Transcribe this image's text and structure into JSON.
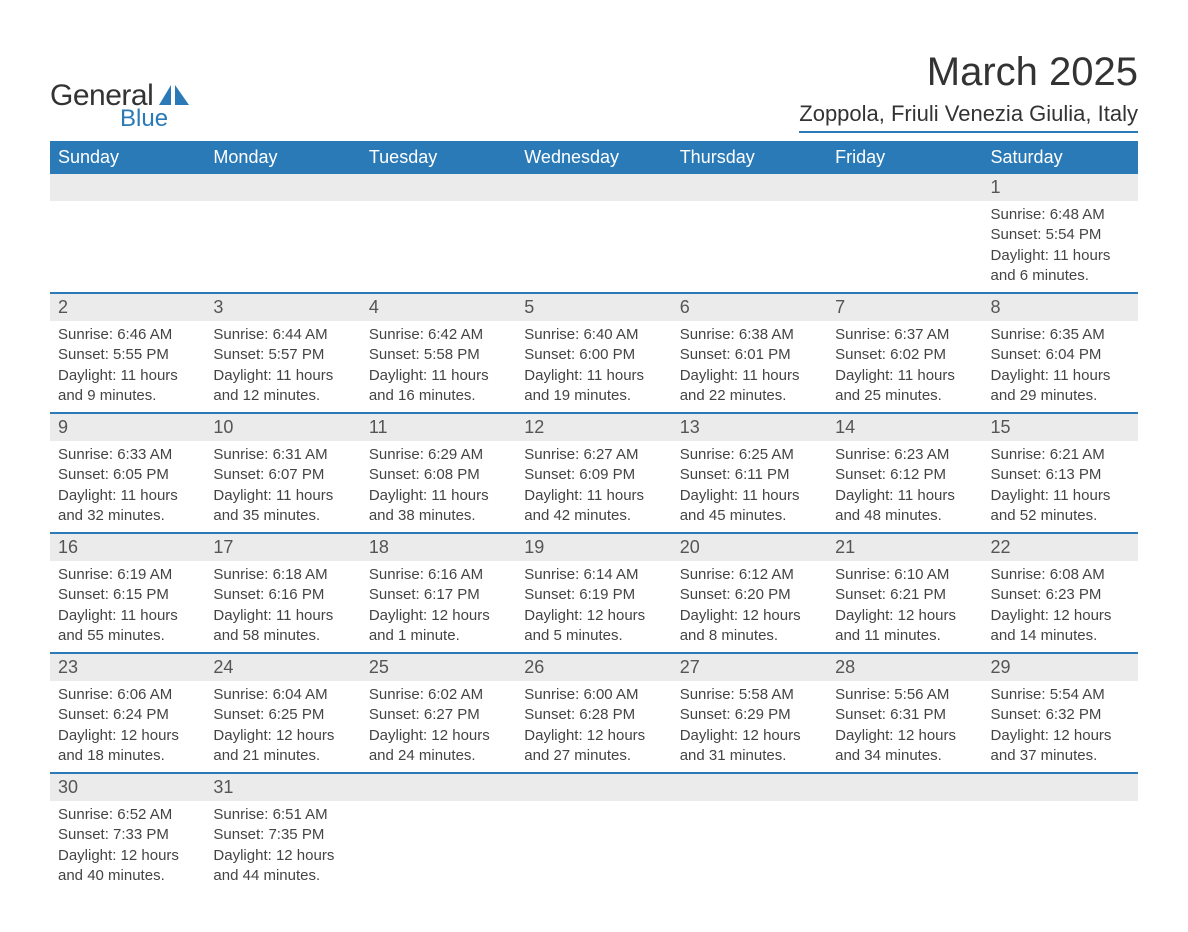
{
  "brand": {
    "line1": "General",
    "line2": "Blue"
  },
  "title": "March 2025",
  "location": "Zoppola, Friuli Venezia Giulia, Italy",
  "colors": {
    "header_bg": "#2a7ab8",
    "header_text": "#ffffff",
    "daynum_bg": "#ebebeb",
    "border": "#2a7ab8",
    "body_text": "#444444",
    "title_text": "#333333",
    "brand_accent": "#2a7ab8"
  },
  "typography": {
    "title_fontsize": 40,
    "location_fontsize": 22,
    "weekday_fontsize": 18,
    "daynum_fontsize": 18,
    "body_fontsize": 15
  },
  "weekdays": [
    "Sunday",
    "Monday",
    "Tuesday",
    "Wednesday",
    "Thursday",
    "Friday",
    "Saturday"
  ],
  "weeks": [
    [
      null,
      null,
      null,
      null,
      null,
      null,
      {
        "n": "1",
        "sunrise": "Sunrise: 6:48 AM",
        "sunset": "Sunset: 5:54 PM",
        "daylight": "Daylight: 11 hours and 6 minutes."
      }
    ],
    [
      {
        "n": "2",
        "sunrise": "Sunrise: 6:46 AM",
        "sunset": "Sunset: 5:55 PM",
        "daylight": "Daylight: 11 hours and 9 minutes."
      },
      {
        "n": "3",
        "sunrise": "Sunrise: 6:44 AM",
        "sunset": "Sunset: 5:57 PM",
        "daylight": "Daylight: 11 hours and 12 minutes."
      },
      {
        "n": "4",
        "sunrise": "Sunrise: 6:42 AM",
        "sunset": "Sunset: 5:58 PM",
        "daylight": "Daylight: 11 hours and 16 minutes."
      },
      {
        "n": "5",
        "sunrise": "Sunrise: 6:40 AM",
        "sunset": "Sunset: 6:00 PM",
        "daylight": "Daylight: 11 hours and 19 minutes."
      },
      {
        "n": "6",
        "sunrise": "Sunrise: 6:38 AM",
        "sunset": "Sunset: 6:01 PM",
        "daylight": "Daylight: 11 hours and 22 minutes."
      },
      {
        "n": "7",
        "sunrise": "Sunrise: 6:37 AM",
        "sunset": "Sunset: 6:02 PM",
        "daylight": "Daylight: 11 hours and 25 minutes."
      },
      {
        "n": "8",
        "sunrise": "Sunrise: 6:35 AM",
        "sunset": "Sunset: 6:04 PM",
        "daylight": "Daylight: 11 hours and 29 minutes."
      }
    ],
    [
      {
        "n": "9",
        "sunrise": "Sunrise: 6:33 AM",
        "sunset": "Sunset: 6:05 PM",
        "daylight": "Daylight: 11 hours and 32 minutes."
      },
      {
        "n": "10",
        "sunrise": "Sunrise: 6:31 AM",
        "sunset": "Sunset: 6:07 PM",
        "daylight": "Daylight: 11 hours and 35 minutes."
      },
      {
        "n": "11",
        "sunrise": "Sunrise: 6:29 AM",
        "sunset": "Sunset: 6:08 PM",
        "daylight": "Daylight: 11 hours and 38 minutes."
      },
      {
        "n": "12",
        "sunrise": "Sunrise: 6:27 AM",
        "sunset": "Sunset: 6:09 PM",
        "daylight": "Daylight: 11 hours and 42 minutes."
      },
      {
        "n": "13",
        "sunrise": "Sunrise: 6:25 AM",
        "sunset": "Sunset: 6:11 PM",
        "daylight": "Daylight: 11 hours and 45 minutes."
      },
      {
        "n": "14",
        "sunrise": "Sunrise: 6:23 AM",
        "sunset": "Sunset: 6:12 PM",
        "daylight": "Daylight: 11 hours and 48 minutes."
      },
      {
        "n": "15",
        "sunrise": "Sunrise: 6:21 AM",
        "sunset": "Sunset: 6:13 PM",
        "daylight": "Daylight: 11 hours and 52 minutes."
      }
    ],
    [
      {
        "n": "16",
        "sunrise": "Sunrise: 6:19 AM",
        "sunset": "Sunset: 6:15 PM",
        "daylight": "Daylight: 11 hours and 55 minutes."
      },
      {
        "n": "17",
        "sunrise": "Sunrise: 6:18 AM",
        "sunset": "Sunset: 6:16 PM",
        "daylight": "Daylight: 11 hours and 58 minutes."
      },
      {
        "n": "18",
        "sunrise": "Sunrise: 6:16 AM",
        "sunset": "Sunset: 6:17 PM",
        "daylight": "Daylight: 12 hours and 1 minute."
      },
      {
        "n": "19",
        "sunrise": "Sunrise: 6:14 AM",
        "sunset": "Sunset: 6:19 PM",
        "daylight": "Daylight: 12 hours and 5 minutes."
      },
      {
        "n": "20",
        "sunrise": "Sunrise: 6:12 AM",
        "sunset": "Sunset: 6:20 PM",
        "daylight": "Daylight: 12 hours and 8 minutes."
      },
      {
        "n": "21",
        "sunrise": "Sunrise: 6:10 AM",
        "sunset": "Sunset: 6:21 PM",
        "daylight": "Daylight: 12 hours and 11 minutes."
      },
      {
        "n": "22",
        "sunrise": "Sunrise: 6:08 AM",
        "sunset": "Sunset: 6:23 PM",
        "daylight": "Daylight: 12 hours and 14 minutes."
      }
    ],
    [
      {
        "n": "23",
        "sunrise": "Sunrise: 6:06 AM",
        "sunset": "Sunset: 6:24 PM",
        "daylight": "Daylight: 12 hours and 18 minutes."
      },
      {
        "n": "24",
        "sunrise": "Sunrise: 6:04 AM",
        "sunset": "Sunset: 6:25 PM",
        "daylight": "Daylight: 12 hours and 21 minutes."
      },
      {
        "n": "25",
        "sunrise": "Sunrise: 6:02 AM",
        "sunset": "Sunset: 6:27 PM",
        "daylight": "Daylight: 12 hours and 24 minutes."
      },
      {
        "n": "26",
        "sunrise": "Sunrise: 6:00 AM",
        "sunset": "Sunset: 6:28 PM",
        "daylight": "Daylight: 12 hours and 27 minutes."
      },
      {
        "n": "27",
        "sunrise": "Sunrise: 5:58 AM",
        "sunset": "Sunset: 6:29 PM",
        "daylight": "Daylight: 12 hours and 31 minutes."
      },
      {
        "n": "28",
        "sunrise": "Sunrise: 5:56 AM",
        "sunset": "Sunset: 6:31 PM",
        "daylight": "Daylight: 12 hours and 34 minutes."
      },
      {
        "n": "29",
        "sunrise": "Sunrise: 5:54 AM",
        "sunset": "Sunset: 6:32 PM",
        "daylight": "Daylight: 12 hours and 37 minutes."
      }
    ],
    [
      {
        "n": "30",
        "sunrise": "Sunrise: 6:52 AM",
        "sunset": "Sunset: 7:33 PM",
        "daylight": "Daylight: 12 hours and 40 minutes."
      },
      {
        "n": "31",
        "sunrise": "Sunrise: 6:51 AM",
        "sunset": "Sunset: 7:35 PM",
        "daylight": "Daylight: 12 hours and 44 minutes."
      },
      null,
      null,
      null,
      null,
      null
    ]
  ]
}
